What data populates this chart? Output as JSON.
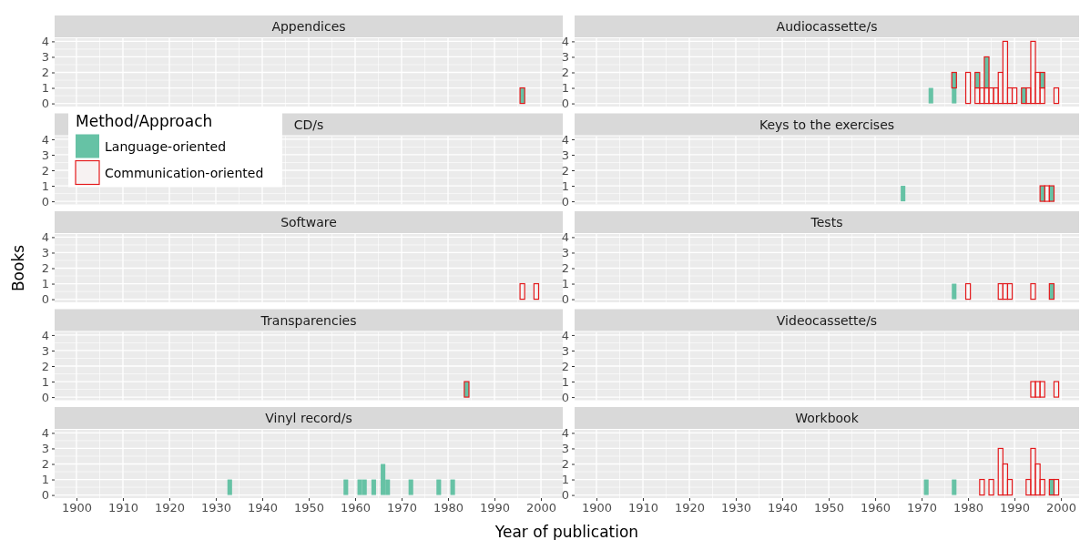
{
  "chart_data": [
    {
      "type": "bar",
      "title": "Appendices",
      "xlim": [
        1895.3,
        2004.7
      ],
      "xticks": [
        1900,
        1910,
        1920,
        1930,
        1940,
        1950,
        1960,
        1970,
        1980,
        1990,
        2000
      ],
      "ylim": [
        -0.2,
        4.2
      ],
      "yticks": [
        0,
        1,
        2,
        3,
        4
      ],
      "grid": true,
      "tick_labels": "y",
      "series": [
        {
          "color": "#e41a1c",
          "colors": [
            "#66c2a5"
          ],
          "line_style": "solid",
          "x": [
            1996
          ],
          "values": [
            1
          ]
        }
      ]
    },
    {
      "type": "bar",
      "title": "Audiocassette/s",
      "stacked": true,
      "x": [
        1972,
        1977,
        1980,
        1982,
        1983,
        1984,
        1985,
        1986,
        1987,
        1988,
        1989,
        1990,
        1992,
        1993,
        1994,
        1995,
        1996,
        1999
      ],
      "xlim": [
        1895.3,
        2003.9
      ],
      "xticks": [
        1900,
        1910,
        1920,
        1930,
        1940,
        1950,
        1960,
        1970,
        1980,
        1990,
        2000
      ],
      "ylim": [
        -0.2,
        4.2
      ],
      "yticks": [
        0,
        1,
        2,
        3,
        4
      ],
      "grid": true,
      "tick_labels": "y",
      "series": [
        {
          "color": "#66c2a5",
          "values": [
            1,
            1,
            null,
            null,
            null,
            null,
            null,
            null,
            null,
            null,
            null,
            null,
            null,
            null,
            null,
            null,
            null,
            null
          ]
        },
        {
          "color": "#e41a1c",
          "line_style": "solid",
          "values": [
            null,
            null,
            2,
            1,
            1,
            1,
            1,
            1,
            2,
            4,
            1,
            1,
            null,
            1,
            4,
            2,
            1,
            1
          ]
        },
        {
          "color": "#e41a1c",
          "colors": [
            null,
            "#66c2a5",
            null,
            "#66c2a5",
            null,
            "#66c2a5",
            null,
            null,
            null,
            null,
            null,
            null,
            "#66c2a5",
            null,
            null,
            null,
            "#66c2a5",
            null
          ],
          "line_style": "solid",
          "values": [
            null,
            1,
            null,
            1,
            null,
            2,
            null,
            null,
            null,
            null,
            null,
            null,
            1,
            null,
            null,
            null,
            1,
            null
          ]
        }
      ]
    },
    {
      "type": "bar",
      "title": "CD/s",
      "legend": "top left",
      "legend_title": "Method/Approach",
      "ylim": [
        -0.2,
        4.2
      ],
      "yticks": [
        0,
        1,
        2,
        3,
        4
      ],
      "grid": true,
      "tick_labels": "y",
      "series": [
        {
          "name": "Language-oriented",
          "color": "#66c2a5"
        },
        {
          "name": "Communication-oriented",
          "color": "#e41a1c",
          "line_style": "solid"
        }
      ]
    },
    {
      "type": "bar",
      "title": "Keys to the exercises",
      "x": [
        1966,
        1996,
        1997,
        1998
      ],
      "xlim": [
        1895.3,
        2003.9
      ],
      "xticks": [
        1900,
        1910,
        1920,
        1930,
        1940,
        1950,
        1960,
        1970,
        1980,
        1990,
        2000
      ],
      "ylim": [
        -0.2,
        4.2
      ],
      "yticks": [
        0,
        1,
        2,
        3,
        4
      ],
      "grid": true,
      "tick_labels": "y",
      "series": [
        {
          "color": "#66c2a5",
          "values": [
            1,
            null,
            null,
            null
          ]
        },
        {
          "color": "#e41a1c",
          "line_style": "solid",
          "values": [
            null,
            null,
            1,
            null
          ]
        },
        {
          "color": "#e41a1c",
          "colors": [
            null,
            "#66c2a5",
            null,
            "#66c2a5"
          ],
          "line_style": "solid",
          "values": [
            null,
            1,
            null,
            1
          ]
        }
      ]
    },
    {
      "type": "bar",
      "title": "Software",
      "ylabel": "Books",
      "xlim": [
        1895.3,
        2004.7
      ],
      "xticks": [
        1900,
        1910,
        1920,
        1930,
        1940,
        1950,
        1960,
        1970,
        1980,
        1990,
        2000
      ],
      "ylim": [
        -0.2,
        4.2
      ],
      "yticks": [
        0,
        1,
        2,
        3,
        4
      ],
      "grid": true,
      "tick_labels": "y",
      "series": [
        {
          "color": "#e41a1c",
          "line_style": "solid",
          "x": [
            1996,
            1999
          ],
          "values": [
            1,
            1
          ]
        }
      ]
    },
    {
      "type": "bar",
      "title": "Tests",
      "xlim": [
        1895.3,
        2003.9
      ],
      "xticks": [
        1900,
        1910,
        1920,
        1930,
        1940,
        1950,
        1960,
        1970,
        1980,
        1990,
        2000
      ],
      "ylim": [
        -0.2,
        4.2
      ],
      "yticks": [
        0,
        1,
        2,
        3,
        4
      ],
      "grid": true,
      "tick_labels": "y",
      "series": [
        {
          "color": "#66c2a5",
          "x": [
            1977
          ],
          "values": [
            1
          ]
        },
        {
          "color": "#e41a1c",
          "line_style": "solid",
          "x": [
            1980,
            1987,
            1988,
            1989,
            1994
          ],
          "values": [
            1,
            1,
            1,
            1,
            1
          ]
        },
        {
          "color": "#e41a1c",
          "colors": [
            "#66c2a5"
          ],
          "line_style": "solid",
          "x": [
            1998
          ],
          "values": [
            1
          ]
        }
      ]
    },
    {
      "type": "bar",
      "title": "Transparencies",
      "xlim": [
        1895.3,
        2004.7
      ],
      "xticks": [
        1900,
        1910,
        1920,
        1930,
        1940,
        1950,
        1960,
        1970,
        1980,
        1990,
        2000
      ],
      "ylim": [
        -0.2,
        4.2
      ],
      "yticks": [
        0,
        1,
        2,
        3,
        4
      ],
      "grid": true,
      "tick_labels": "y",
      "series": [
        {
          "color": "#e41a1c",
          "colors": [
            "#66c2a5"
          ],
          "line_style": "solid",
          "x": [
            1984
          ],
          "values": [
            1
          ]
        }
      ]
    },
    {
      "type": "bar",
      "title": "Videocassette/s",
      "xlim": [
        1895.3,
        2003.9
      ],
      "xticks": [
        1900,
        1910,
        1920,
        1930,
        1940,
        1950,
        1960,
        1970,
        1980,
        1990,
        2000
      ],
      "ylim": [
        -0.2,
        4.2
      ],
      "yticks": [
        0,
        1,
        2,
        3,
        4
      ],
      "grid": true,
      "tick_labels": "y",
      "series": [
        {
          "color": "#e41a1c",
          "line_style": "solid",
          "x": [
            1994,
            1995,
            1996,
            1999
          ],
          "values": [
            1,
            1,
            1,
            1
          ]
        }
      ]
    },
    {
      "type": "bar",
      "title": "Vinyl record/s",
      "xlabel": "Year of publication",
      "xlim": [
        1895.3,
        2004.7
      ],
      "xticks": [
        1900,
        1910,
        1920,
        1930,
        1940,
        1950,
        1960,
        1970,
        1980,
        1990,
        2000
      ],
      "ylim": [
        -0.2,
        4.2
      ],
      "yticks": [
        0,
        1,
        2,
        3,
        4
      ],
      "grid": true,
      "series": [
        {
          "color": "#66c2a5",
          "x": [
            1933,
            1958,
            1961,
            1962,
            1964,
            1966,
            1967,
            1972,
            1978,
            1981
          ],
          "values": [
            1,
            1,
            1,
            1,
            1,
            2,
            1,
            1,
            1,
            1
          ]
        }
      ]
    },
    {
      "type": "bar",
      "title": "Workbook",
      "xlim": [
        1895.3,
        2003.9
      ],
      "xticks": [
        1900,
        1910,
        1920,
        1930,
        1940,
        1950,
        1960,
        1970,
        1980,
        1990,
        2000
      ],
      "ylim": [
        -0.2,
        4.2
      ],
      "yticks": [
        0,
        1,
        2,
        3,
        4
      ],
      "grid": true,
      "series": [
        {
          "color": "#66c2a5",
          "x": [
            1971,
            1977
          ],
          "values": [
            1,
            1
          ]
        },
        {
          "color": "#e41a1c",
          "line_style": "solid",
          "x": [
            1983,
            1985,
            1987,
            1988,
            1989,
            1993,
            1994,
            1995,
            1996,
            1999
          ],
          "values": [
            1,
            1,
            3,
            2,
            1,
            1,
            3,
            2,
            1,
            1
          ]
        },
        {
          "color": "#e41a1c",
          "colors": [
            "#66c2a5"
          ],
          "line_style": "solid",
          "x": [
            1998
          ],
          "values": [
            1
          ]
        }
      ]
    }
  ]
}
